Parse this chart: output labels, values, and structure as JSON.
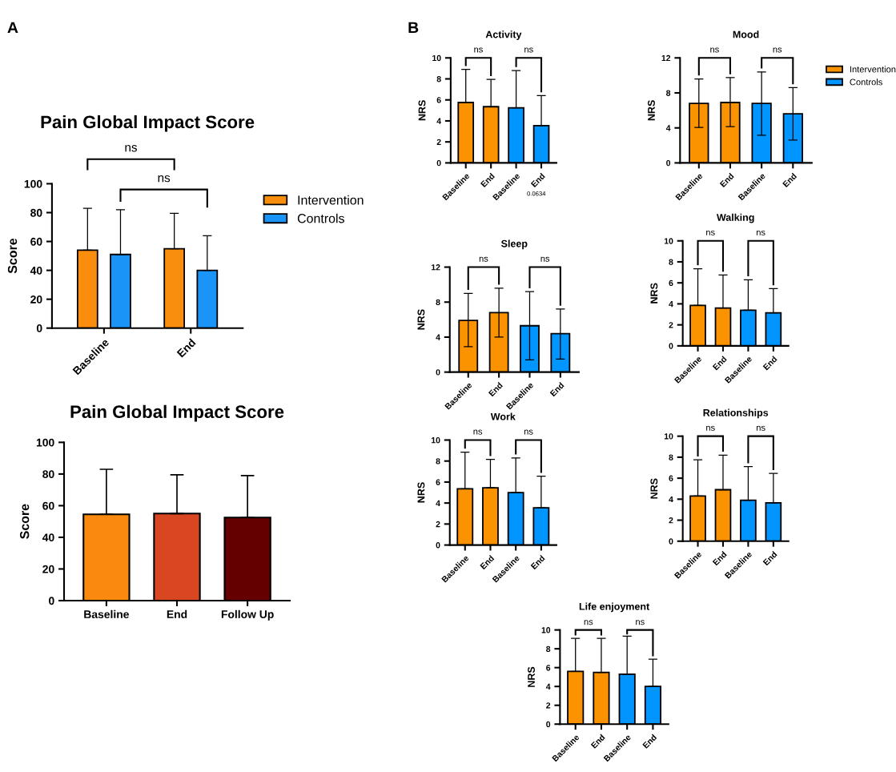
{
  "chart_data": [
    {
      "type": "bar",
      "title": "Pain Global Impact Score",
      "ylabel": "Score",
      "categories": [
        "Baseline",
        "End"
      ],
      "legend": "right",
      "ylim": [
        0,
        100
      ],
      "yticks": [
        0,
        20,
        40,
        60,
        80,
        100
      ],
      "annotations": [
        "A",
        "ns",
        "ns"
      ],
      "series": [
        {
          "name": "Intervention",
          "color": "#f98d0e",
          "values": [
            54,
            55
          ],
          "errors": [
            [
              54,
              83
            ],
            [
              55,
              79.5
            ]
          ]
        },
        {
          "name": "Controls",
          "color": "#1a94f7",
          "values": [
            51,
            40
          ],
          "errors": [
            [
              51,
              82
            ],
            [
              40,
              64
            ]
          ]
        }
      ]
    },
    {
      "type": "bar",
      "title": "Pain Global Impact Score",
      "ylabel": "Score",
      "categories": [
        "Baseline",
        "End",
        "Follow Up"
      ],
      "ylim": [
        0,
        100
      ],
      "yticks": [
        0,
        20,
        40,
        60,
        80,
        100
      ],
      "values": [
        54.5,
        55,
        52.5
      ],
      "colors": [
        "#f98a0f",
        "#d84622",
        "#640000"
      ],
      "errors": [
        [
          54.5,
          83
        ],
        [
          55,
          79.5
        ],
        [
          52.5,
          79
        ]
      ]
    },
    {
      "type": "bar",
      "title": "Activity",
      "ylabel": "NRS",
      "categories": [
        "Baseline",
        "End",
        "Baseline",
        "End"
      ],
      "ylim": [
        0,
        10
      ],
      "yticks": [
        0,
        2,
        4,
        6,
        8,
        10
      ],
      "annotations": [
        "B",
        "ns",
        "ns",
        "0.0634"
      ],
      "series": [
        {
          "color": "#fb9200",
          "values": [
            5.75,
            5.35,
            null,
            null
          ],
          "errors": [
            [
              5.75,
              8.9
            ],
            [
              5.35,
              7.95
            ],
            null,
            null
          ]
        },
        {
          "color": "#0095ff",
          "values": [
            null,
            null,
            5.25,
            3.55
          ],
          "errors": [
            null,
            null,
            [
              5.25,
              8.8
            ],
            [
              3.55,
              6.4
            ]
          ]
        }
      ]
    },
    {
      "type": "bar",
      "title": "Mood",
      "ylabel": "NRS",
      "categories": [
        "Baseline",
        "End",
        "Baseline",
        "End"
      ],
      "legend": "right",
      "ylim": [
        0,
        12
      ],
      "yticks": [
        0,
        4,
        8,
        12
      ],
      "annotations": [
        "ns",
        "ns"
      ],
      "series": [
        {
          "name": "Intervention",
          "color": "#fb9200",
          "values": [
            6.8,
            6.9,
            null,
            null
          ],
          "errors": [
            [
              4.05,
              9.6
            ],
            [
              4.15,
              9.75
            ],
            null,
            null
          ]
        },
        {
          "name": "Controls",
          "color": "#0095ff",
          "values": [
            null,
            null,
            6.8,
            5.6
          ],
          "errors": [
            null,
            null,
            [
              3.15,
              10.4
            ],
            [
              2.6,
              8.6
            ]
          ]
        }
      ]
    },
    {
      "type": "bar",
      "title": "Sleep",
      "ylabel": "NRS",
      "categories": [
        "Baseline",
        "End",
        "Baseline",
        "End"
      ],
      "ylim": [
        0,
        12
      ],
      "yticks": [
        0,
        4,
        8,
        12
      ],
      "annotations": [
        "ns",
        "ns"
      ],
      "series": [
        {
          "color": "#fb9200",
          "values": [
            5.9,
            6.8,
            null,
            null
          ],
          "errors": [
            [
              2.9,
              9.0
            ],
            [
              4.0,
              9.6
            ],
            null,
            null
          ]
        },
        {
          "color": "#0095ff",
          "values": [
            null,
            null,
            5.3,
            4.4
          ],
          "errors": [
            null,
            null,
            [
              1.4,
              9.2
            ],
            [
              1.5,
              7.2
            ]
          ]
        }
      ]
    },
    {
      "type": "bar",
      "title": "Walking",
      "ylabel": "NRS",
      "categories": [
        "Baseline",
        "End",
        "Baseline",
        "End"
      ],
      "ylim": [
        0,
        10
      ],
      "yticks": [
        0,
        2,
        4,
        6,
        8,
        10
      ],
      "annotations": [
        "ns",
        "ns"
      ],
      "series": [
        {
          "color": "#fb9200",
          "values": [
            3.85,
            3.6,
            null,
            null
          ],
          "errors": [
            [
              3.85,
              7.35
            ],
            [
              3.6,
              6.75
            ],
            null,
            null
          ]
        },
        {
          "color": "#0095ff",
          "values": [
            null,
            null,
            3.4,
            3.15
          ],
          "errors": [
            null,
            null,
            [
              3.4,
              6.3
            ],
            [
              3.15,
              5.45
            ]
          ]
        }
      ]
    },
    {
      "type": "bar",
      "title": "Work",
      "ylabel": "NRS",
      "categories": [
        "Baseline",
        "End",
        "Baseline",
        "End"
      ],
      "ylim": [
        0,
        10
      ],
      "yticks": [
        0,
        2,
        4,
        6,
        8,
        10
      ],
      "annotations": [
        "ns",
        "ns"
      ],
      "series": [
        {
          "color": "#fb9200",
          "values": [
            5.35,
            5.45,
            null,
            null
          ],
          "errors": [
            [
              5.35,
              8.85
            ],
            [
              5.45,
              8.15
            ],
            null,
            null
          ]
        },
        {
          "color": "#0095ff",
          "values": [
            null,
            null,
            5.0,
            3.55
          ],
          "errors": [
            null,
            null,
            [
              5.0,
              8.3
            ],
            [
              3.55,
              6.55
            ]
          ]
        }
      ]
    },
    {
      "type": "bar",
      "title": "Relationships",
      "ylabel": "NRS",
      "categories": [
        "Baseline",
        "End",
        "Baseline",
        "End"
      ],
      "ylim": [
        0,
        10
      ],
      "yticks": [
        0,
        2,
        4,
        6,
        8,
        10
      ],
      "annotations": [
        "ns",
        "ns"
      ],
      "series": [
        {
          "color": "#fb9200",
          "values": [
            4.3,
            4.9,
            null,
            null
          ],
          "errors": [
            [
              4.3,
              7.75
            ],
            [
              4.9,
              8.2
            ],
            null,
            null
          ]
        },
        {
          "color": "#0095ff",
          "values": [
            null,
            null,
            3.9,
            3.65
          ],
          "errors": [
            null,
            null,
            [
              3.9,
              7.1
            ],
            [
              3.65,
              6.45
            ]
          ]
        }
      ]
    },
    {
      "type": "bar",
      "title": "Life enjoyment",
      "ylabel": "NRS",
      "categories": [
        "Baseline",
        "End",
        "Baseline",
        "End"
      ],
      "ylim": [
        0,
        10
      ],
      "yticks": [
        0,
        2,
        4,
        6,
        8,
        10
      ],
      "annotations": [
        "ns",
        "ns"
      ],
      "series": [
        {
          "color": "#fb9200",
          "values": [
            5.6,
            5.5,
            null,
            null
          ],
          "errors": [
            [
              5.6,
              9.1
            ],
            [
              5.5,
              9.1
            ],
            null,
            null
          ]
        },
        {
          "color": "#0095ff",
          "values": [
            null,
            null,
            5.3,
            4.0
          ],
          "errors": [
            null,
            null,
            [
              5.3,
              9.35
            ],
            [
              4.0,
              6.9
            ]
          ]
        }
      ]
    }
  ]
}
